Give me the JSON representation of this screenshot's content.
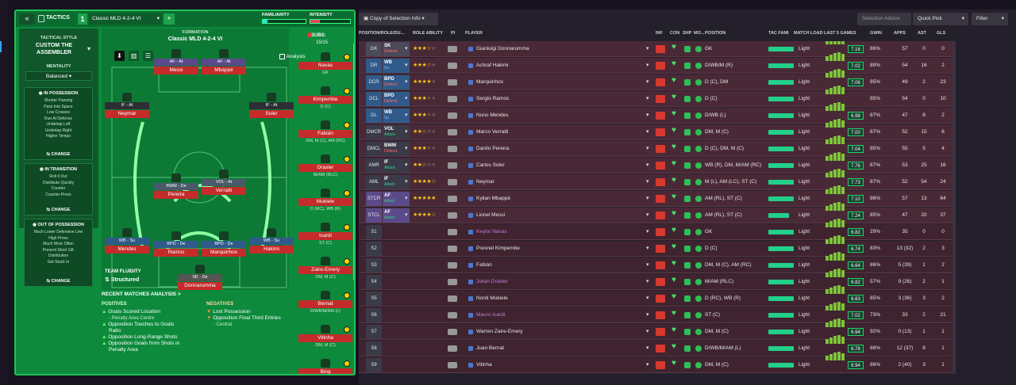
{
  "header": {
    "tactics_label": "TACTICS",
    "slot": "1",
    "tactic_name": "Classic MLD 4-2-4 VI",
    "plus": "+",
    "familiarity": "FAMILIARITY",
    "intensity": "INTENSITY",
    "back": "«"
  },
  "style": {
    "title": "TACTICAL STYLE",
    "name_line1": "CUSTOM THE",
    "name_line2": "ASSEMBLER",
    "mentality_label": "MENTALITY",
    "mentality_value": "Balanced"
  },
  "in_possession": {
    "title": "IN POSSESSION",
    "items": [
      "Shorter Passing",
      "Pass Into Space",
      "Low Crosses",
      "Run At Defence",
      "Underlap Left",
      "Underlap Right",
      "Higher Tempo"
    ],
    "change": "CHANGE"
  },
  "in_transition": {
    "title": "IN TRANSITION",
    "items": [
      "Roll It Out",
      "Distribute Quickly",
      "Counter",
      "Counter-Press"
    ],
    "change": "CHANGE"
  },
  "out_possession": {
    "title": "OUT OF POSSESSION",
    "items": [
      "Much Lower Defensive Line",
      "High Press",
      "Much More Often",
      "Prevent Short GK",
      "Distribution",
      "Get Stuck In"
    ],
    "change": "CHANGE"
  },
  "formation": {
    "label": "FORMATION",
    "name": "Classic MLD 4-2-4 VI",
    "analysis": "Analysis",
    "subs_label": "SUBS:",
    "subs_count": "15/15",
    "fluidity_label": "TEAM FLUIDITY",
    "fluidity_value": "Structured"
  },
  "pitch_players": [
    {
      "role": "AF - At",
      "name": "Messi"
    },
    {
      "role": "AF - At",
      "name": "Mbappé"
    },
    {
      "role": "IF - At",
      "name": "Neymar"
    },
    {
      "role": "IF - At",
      "name": "Soler"
    },
    {
      "role": "BWM - De",
      "name": "Pereira"
    },
    {
      "role": "VOL - At",
      "name": "Verratti"
    },
    {
      "role": "WB - Su",
      "name": "Mendes"
    },
    {
      "role": "BPD - De",
      "name": "Ramos"
    },
    {
      "role": "BPD - De",
      "name": "Marquinhos"
    },
    {
      "role": "WB - Su",
      "name": "Hakimi"
    },
    {
      "role": "SK - De",
      "name": "Donnarumma"
    }
  ],
  "subs": [
    {
      "name": "Navas",
      "pos": "GK"
    },
    {
      "name": "Kimpembe",
      "pos": "D (C)"
    },
    {
      "name": "Fabián",
      "pos": "DM, M (C), AM (RC)"
    },
    {
      "name": "Draxler",
      "pos": "M/AM (RLC)"
    },
    {
      "name": "Mukiele",
      "pos": "D (RC), WB (R)"
    },
    {
      "name": "Icardi",
      "pos": "ST (C)"
    },
    {
      "name": "Zaire-Emery",
      "pos": "DM, M (C)"
    },
    {
      "name": "Bernat",
      "pos": "D/WB/M/AM (L)"
    },
    {
      "name": "Vitinha",
      "pos": "DM, M (C)"
    },
    {
      "name": "Bing",
      "pos": ""
    }
  ],
  "analysis": {
    "title": "RECENT MATCHES ANALYSIS >",
    "positives_label": "POSITIVES",
    "positives": [
      "Goals Scored Location",
      "- Penalty Area Centre",
      "Opposition Touches to Goals",
      "Ratio",
      "Opposition Long-Range Shots",
      "Opposition Goals from Shots in",
      "Penalty Area"
    ],
    "negatives_label": "NEGATIVES",
    "negatives": [
      "Lost Possession",
      "Opposition Final Third Entries",
      "- Central"
    ]
  },
  "toolbar": {
    "copy": "Copy of Selection Info",
    "selection_advice": "Selection Advice",
    "quick_pick": "Quick Pick",
    "filter": "Filter"
  },
  "columns": {
    "pos": "POSITION/ROLE/DU...",
    "role_ability": "ROLE ABILITY",
    "pi": "PI",
    "player": "PLAYER",
    "inf": "INF",
    "con": "CON",
    "shp": "SHP",
    "mo": "MO...",
    "position": "POSITION",
    "tac_fam": "TAC FAMI",
    "match_load": "MATCH LOAD",
    "last5": "LAST 5 GAMES",
    "gwin": "GWIN",
    "apps": "APPS",
    "ast": "AST",
    "gls": "GLS"
  },
  "rows": [
    {
      "pos": "GK",
      "role": "SK",
      "duty": "Defend",
      "stars": 3.5,
      "player": "Gianluigi Donnarumma",
      "position": "GK",
      "load": "Light",
      "rating": "7.16",
      "gwin": "86%",
      "apps": "57",
      "ast": "0",
      "gls": "0",
      "fam": 1
    },
    {
      "pos": "DR",
      "role": "WB",
      "duty": "Su",
      "stars": 3.5,
      "player": "Achraf Hakimi",
      "position": "D/WB/M (R)",
      "load": "Light",
      "rating": "7.02",
      "gwin": "89%",
      "apps": "54",
      "ast": "16",
      "gls": "2",
      "fam": 1
    },
    {
      "pos": "DCR",
      "role": "BPD",
      "duty": "Defend",
      "stars": 4,
      "player": "Marquinhos",
      "position": "D (C), DM",
      "load": "Light",
      "rating": "7.06",
      "gwin": "85%",
      "apps": "49",
      "ast": "2",
      "gls": "23",
      "fam": 1
    },
    {
      "pos": "DCL",
      "role": "BPD",
      "duty": "Defend",
      "stars": 3,
      "player": "Sergio Ramos",
      "position": "D (C)",
      "load": "Light",
      "rating": "",
      "gwin": "85%",
      "apps": "54",
      "ast": "0",
      "gls": "10",
      "fam": 1
    },
    {
      "pos": "DL",
      "role": "WB",
      "duty": "Su",
      "stars": 3,
      "player": "Nuno Mendes",
      "position": "D/WB (L)",
      "load": "Light",
      "rating": "6.98",
      "gwin": "87%",
      "apps": "47",
      "ast": "8",
      "gls": "2",
      "fam": 1
    },
    {
      "pos": "DMCR",
      "role": "VOL",
      "duty": "Attack",
      "stars": 2.5,
      "player": "Marco Verratti",
      "position": "DM, M (C)",
      "load": "Light",
      "rating": "7.00",
      "gwin": "87%",
      "apps": "52",
      "ast": "15",
      "gls": "6",
      "fam": 1
    },
    {
      "pos": "DMCL",
      "role": "BWM",
      "duty": "Defend",
      "stars": 3,
      "player": "Danilo Pereira",
      "position": "D (C), DM, M (C)",
      "load": "Light",
      "rating": "7.04",
      "gwin": "85%",
      "apps": "55",
      "ast": "5",
      "gls": "4",
      "fam": 1
    },
    {
      "pos": "AMR",
      "role": "IF",
      "duty": "Attack",
      "stars": 2.5,
      "player": "Carlos Soler",
      "position": "WB (R), DM, M/AM (RC)",
      "load": "Light",
      "rating": "7.76",
      "gwin": "87%",
      "apps": "53",
      "ast": "25",
      "gls": "16",
      "fam": 1
    },
    {
      "pos": "AML",
      "role": "IF",
      "duty": "Attack",
      "stars": 4.5,
      "player": "Neymar",
      "position": "M (L), AM (LC), ST (C)",
      "load": "Light",
      "rating": "7.73",
      "gwin": "87%",
      "apps": "52",
      "ast": "54",
      "gls": "24",
      "fam": 1
    },
    {
      "pos": "STCR",
      "role": "AF",
      "duty": "Attack",
      "stars": 5,
      "player": "Kylian Mbappé",
      "position": "AM (RL), ST (C)",
      "load": "Light",
      "rating": "7.10",
      "gwin": "86%",
      "apps": "57",
      "ast": "13",
      "gls": "64",
      "fam": 1
    },
    {
      "pos": "STCL",
      "role": "AF",
      "duty": "Attack",
      "stars": 4.5,
      "player": "Lionel Messi",
      "position": "AM (RL), ST (C)",
      "load": "Light",
      "rating": "7.24",
      "gwin": "85%",
      "apps": "47",
      "ast": "20",
      "gls": "37",
      "fam": 0.8
    },
    {
      "pos": "S1",
      "role": "",
      "duty": "",
      "stars": 0,
      "player": "Keylor Navas",
      "position": "GK",
      "load": "Light",
      "rating": "6.82",
      "gwin": "29%",
      "apps": "35",
      "ast": "0",
      "gls": "0",
      "fam": 1
    },
    {
      "pos": "S2",
      "role": "",
      "duty": "",
      "stars": 0,
      "player": "Presnel Kimpembe",
      "position": "D (C)",
      "load": "Light",
      "rating": "6.74",
      "gwin": "83%",
      "apps": "13 (32)",
      "ast": "2",
      "gls": "3",
      "fam": 1
    },
    {
      "pos": "S3",
      "role": "",
      "duty": "",
      "stars": 0,
      "player": "Fabián",
      "position": "DM, M (C), AM (RC)",
      "load": "Light",
      "rating": "6.64",
      "gwin": "86%",
      "apps": "5 (39)",
      "ast": "1",
      "gls": "2",
      "fam": 1
    },
    {
      "pos": "S4",
      "role": "",
      "duty": "",
      "stars": 0,
      "player": "Julian Draxler",
      "position": "M/AM (RLC)",
      "load": "Light",
      "rating": "6.82",
      "gwin": "57%",
      "apps": "9 (26)",
      "ast": "2",
      "gls": "1",
      "fam": 1
    },
    {
      "pos": "S5",
      "role": "",
      "duty": "",
      "stars": 0,
      "player": "Nordi Mukiele",
      "position": "D (RC), WB (R)",
      "load": "Light",
      "rating": "6.83",
      "gwin": "85%",
      "apps": "3 (36)",
      "ast": "3",
      "gls": "2",
      "fam": 1
    },
    {
      "pos": "S6",
      "role": "",
      "duty": "",
      "stars": 0,
      "player": "Mauro Icardi",
      "position": "ST (C)",
      "load": "Light",
      "rating": "7.02",
      "gwin": "73%",
      "apps": "33",
      "ast": "2",
      "gls": "21",
      "fam": 1
    },
    {
      "pos": "S7",
      "role": "",
      "duty": "",
      "stars": 0,
      "player": "Warren Zaire-Emery",
      "position": "DM, M (C)",
      "load": "Light",
      "rating": "6.94",
      "gwin": "92%",
      "apps": "0 (13)",
      "ast": "1",
      "gls": "1",
      "fam": 1
    },
    {
      "pos": "S8",
      "role": "",
      "duty": "",
      "stars": 0,
      "player": "Juan Bernat",
      "position": "D/WB/M/AM (L)",
      "load": "Light",
      "rating": "6.78",
      "gwin": "88%",
      "apps": "12 (37)",
      "ast": "8",
      "gls": "1",
      "fam": 1
    },
    {
      "pos": "S9",
      "role": "",
      "duty": "",
      "stars": 0,
      "player": "Vitinha",
      "position": "DM, M (C)",
      "load": "Light",
      "rating": "6.94",
      "gwin": "86%",
      "apps": "2 (40)",
      "ast": "3",
      "gls": "1",
      "fam": 1
    }
  ],
  "colors": {
    "green": "#0d8a3c",
    "red_name": "#c62b2b",
    "row": "#4a2937",
    "pos_blue": "#2f5a8a",
    "pos_purple": "#5b4a8a",
    "pos_grey": "#3a3a48",
    "defend": "#ff6b6b",
    "support": "#7ab8ff",
    "attack": "#3ad18b"
  }
}
